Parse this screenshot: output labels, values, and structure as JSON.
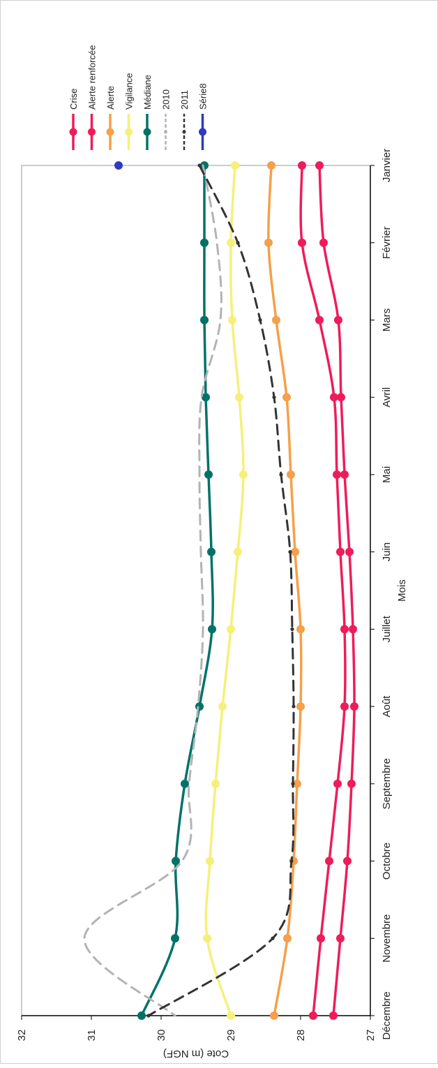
{
  "chart_data": {
    "type": "line",
    "xlabel": "Mois",
    "ylabel": "Cote (m NGF)",
    "ylim": [
      27,
      32
    ],
    "yticks": [
      27,
      28,
      29,
      30,
      31,
      32
    ],
    "categories": [
      "Janvier",
      "Février",
      "Mars",
      "Avril",
      "Mai",
      "Juin",
      "Juillet",
      "Août",
      "Septembre",
      "Octobre",
      "Novembre",
      "Décembre"
    ],
    "grid": false,
    "legend": "right",
    "series": [
      {
        "name": "Crise",
        "color": "#ee1c5a",
        "style": "solid",
        "markers": true,
        "values": [
          27.73,
          27.67,
          27.46,
          27.42,
          27.37,
          27.3,
          27.25,
          27.23,
          27.27,
          27.33,
          27.43,
          27.53
        ]
      },
      {
        "name": "Alerte renforcée",
        "color": "#ee1c5a",
        "style": "solid",
        "markers": true,
        "values": [
          27.98,
          27.98,
          27.73,
          27.52,
          27.48,
          27.43,
          27.37,
          27.37,
          27.47,
          27.59,
          27.71,
          27.82
        ]
      },
      {
        "name": "Alerte",
        "color": "#f5a04a",
        "style": "solid",
        "markers": true,
        "values": [
          28.42,
          28.46,
          28.35,
          28.2,
          28.14,
          28.08,
          28.0,
          28.0,
          28.05,
          28.1,
          28.19,
          28.38
        ]
      },
      {
        "name": "Vigilance",
        "color": "#f5f07a",
        "style": "solid",
        "markers": true,
        "values": [
          28.94,
          29.0,
          28.98,
          28.88,
          28.82,
          28.9,
          29.0,
          29.12,
          29.22,
          29.3,
          29.34,
          29.0
        ]
      },
      {
        "name": "Médiane",
        "color": "#00726a",
        "style": "solid",
        "markers": true,
        "values": [
          29.38,
          29.38,
          29.38,
          29.36,
          29.32,
          29.28,
          29.27,
          29.45,
          29.66,
          29.79,
          29.8,
          30.28
        ]
      },
      {
        "name": "2010",
        "color": "#b3b3b3",
        "style": "dashed",
        "markers": false,
        "values": [
          29.4,
          29.2,
          29.15,
          29.42,
          29.45,
          29.43,
          29.4,
          29.47,
          29.6,
          29.7,
          31.1,
          29.8
        ]
      },
      {
        "name": "2011",
        "color": "#333333",
        "style": "dashed",
        "markers": true,
        "values": [
          29.45,
          28.9,
          28.58,
          28.38,
          28.28,
          28.15,
          28.12,
          28.1,
          28.11,
          28.13,
          28.4,
          30.18
        ]
      },
      {
        "name": "Série8",
        "color": "#2e3bbf",
        "style": "none",
        "markers": true,
        "values": [
          30.61,
          null,
          null,
          null,
          null,
          null,
          null,
          null,
          null,
          null,
          null,
          null
        ]
      }
    ]
  }
}
